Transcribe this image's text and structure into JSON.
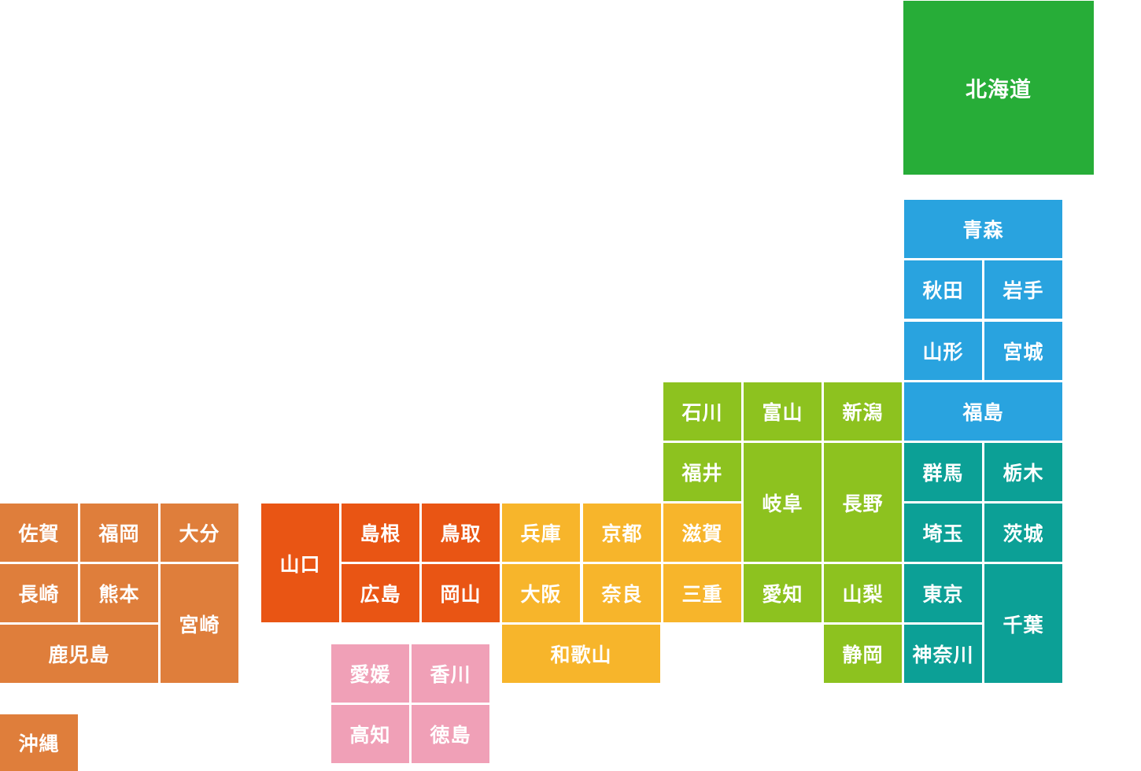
{
  "colors": {
    "hokkaido": "#27ad38",
    "tohoku": "#29a3df",
    "kanto": "#0ca096",
    "chubu": "#8dc21f",
    "kinki": "#f7b52b",
    "chugoku": "#e95514",
    "shikoku": "#f0a0b7",
    "kyushu": "#df7e3b"
  },
  "prefectures": [
    {
      "id": "hokkaido",
      "name": "北海道",
      "region": "hokkaido"
    },
    {
      "id": "aomori",
      "name": "青森",
      "region": "tohoku"
    },
    {
      "id": "akita",
      "name": "秋田",
      "region": "tohoku"
    },
    {
      "id": "iwate",
      "name": "岩手",
      "region": "tohoku"
    },
    {
      "id": "yamagata",
      "name": "山形",
      "region": "tohoku"
    },
    {
      "id": "miyagi",
      "name": "宮城",
      "region": "tohoku"
    },
    {
      "id": "fukushima",
      "name": "福島",
      "region": "tohoku"
    },
    {
      "id": "gunma",
      "name": "群馬",
      "region": "kanto"
    },
    {
      "id": "tochigi",
      "name": "栃木",
      "region": "kanto"
    },
    {
      "id": "saitama",
      "name": "埼玉",
      "region": "kanto"
    },
    {
      "id": "ibaraki",
      "name": "茨城",
      "region": "kanto"
    },
    {
      "id": "tokyo",
      "name": "東京",
      "region": "kanto"
    },
    {
      "id": "chiba",
      "name": "千葉",
      "region": "kanto"
    },
    {
      "id": "kanagawa",
      "name": "神奈川",
      "region": "kanto"
    },
    {
      "id": "ishikawa",
      "name": "石川",
      "region": "chubu"
    },
    {
      "id": "toyama",
      "name": "富山",
      "region": "chubu"
    },
    {
      "id": "niigata",
      "name": "新潟",
      "region": "chubu"
    },
    {
      "id": "fukui",
      "name": "福井",
      "region": "chubu"
    },
    {
      "id": "gifu",
      "name": "岐阜",
      "region": "chubu"
    },
    {
      "id": "nagano",
      "name": "長野",
      "region": "chubu"
    },
    {
      "id": "aichi",
      "name": "愛知",
      "region": "chubu"
    },
    {
      "id": "yamanashi",
      "name": "山梨",
      "region": "chubu"
    },
    {
      "id": "shizuoka",
      "name": "静岡",
      "region": "chubu"
    },
    {
      "id": "shiga",
      "name": "滋賀",
      "region": "kinki"
    },
    {
      "id": "mie",
      "name": "三重",
      "region": "kinki"
    },
    {
      "id": "hyogo",
      "name": "兵庫",
      "region": "kinki"
    },
    {
      "id": "kyoto",
      "name": "京都",
      "region": "kinki"
    },
    {
      "id": "osaka",
      "name": "大阪",
      "region": "kinki"
    },
    {
      "id": "nara",
      "name": "奈良",
      "region": "kinki"
    },
    {
      "id": "wakayama",
      "name": "和歌山",
      "region": "kinki"
    },
    {
      "id": "yamaguchi",
      "name": "山口",
      "region": "chugoku"
    },
    {
      "id": "shimane",
      "name": "島根",
      "region": "chugoku"
    },
    {
      "id": "tottori",
      "name": "鳥取",
      "region": "chugoku"
    },
    {
      "id": "hiroshima",
      "name": "広島",
      "region": "chugoku"
    },
    {
      "id": "okayama",
      "name": "岡山",
      "region": "chugoku"
    },
    {
      "id": "ehime",
      "name": "愛媛",
      "region": "shikoku"
    },
    {
      "id": "kagawa",
      "name": "香川",
      "region": "shikoku"
    },
    {
      "id": "kochi",
      "name": "高知",
      "region": "shikoku"
    },
    {
      "id": "tokushima",
      "name": "徳島",
      "region": "shikoku"
    },
    {
      "id": "saga",
      "name": "佐賀",
      "region": "kyushu"
    },
    {
      "id": "fukuoka",
      "name": "福岡",
      "region": "kyushu"
    },
    {
      "id": "oita",
      "name": "大分",
      "region": "kyushu"
    },
    {
      "id": "nagasaki",
      "name": "長崎",
      "region": "kyushu"
    },
    {
      "id": "kumamoto",
      "name": "熊本",
      "region": "kyushu"
    },
    {
      "id": "miyazaki",
      "name": "宮崎",
      "region": "kyushu"
    },
    {
      "id": "kagoshima",
      "name": "鹿児島",
      "region": "kyushu"
    },
    {
      "id": "okinawa",
      "name": "沖縄",
      "region": "kyushu"
    }
  ]
}
